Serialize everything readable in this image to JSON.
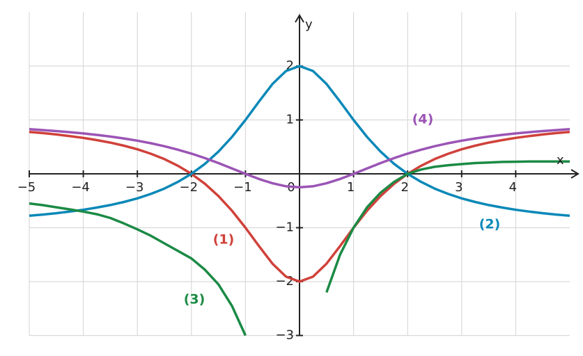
{
  "chart_data": {
    "type": "line",
    "x_label": "x",
    "y_label": "y",
    "x": [
      -5,
      -4.75,
      -4.5,
      -4.25,
      -4,
      -3.75,
      -3.5,
      -3.25,
      -3,
      -2.75,
      -2.5,
      -2.25,
      -2,
      -1.75,
      -1.5,
      -1.25,
      -1,
      -0.75,
      -0.5,
      -0.25,
      0,
      0.25,
      0.5,
      0.75,
      1,
      1.25,
      1.5,
      1.75,
      2,
      2.25,
      2.5,
      2.75,
      3,
      3.25,
      3.5,
      3.75,
      4,
      4.25,
      4.5,
      4.75,
      5
    ],
    "series": [
      {
        "name": "(1)",
        "color": "#d0413a",
        "values": [
          0.778,
          0.756,
          0.73,
          0.701,
          0.667,
          0.626,
          0.579,
          0.522,
          0.455,
          0.373,
          0.273,
          0.15,
          0,
          -0.185,
          -0.412,
          -0.684,
          -1,
          -1.341,
          -1.667,
          -1.909,
          -2,
          -1.909,
          -1.667,
          -1.341,
          -1,
          -0.684,
          -0.412,
          -0.185,
          0,
          0.15,
          0.273,
          0.373,
          0.455,
          0.522,
          0.579,
          0.626,
          0.667,
          0.701,
          0.73,
          0.756,
          0.778
        ]
      },
      {
        "name": "(2)",
        "color": "#0a88b8",
        "values": [
          -0.778,
          -0.756,
          -0.73,
          -0.701,
          -0.667,
          -0.626,
          -0.579,
          -0.522,
          -0.455,
          -0.373,
          -0.273,
          -0.15,
          0,
          0.185,
          0.412,
          0.684,
          1,
          1.341,
          1.667,
          1.909,
          2,
          1.909,
          1.667,
          1.341,
          1,
          0.684,
          0.412,
          0.185,
          0,
          -0.15,
          -0.273,
          -0.373,
          -0.455,
          -0.522,
          -0.579,
          -0.626,
          -0.667,
          -0.701,
          -0.73,
          -0.756,
          -0.778
        ]
      },
      {
        "name": "(3)",
        "color": "#1b8a45",
        "values": [
          -0.55,
          -0.58,
          -0.62,
          -0.66,
          -0.7,
          -0.75,
          -0.82,
          -0.92,
          -1.03,
          -1.15,
          -1.29,
          -1.43,
          -1.57,
          -1.78,
          -2.05,
          -2.45,
          -3.0,
          null,
          null,
          null,
          null,
          null,
          -2.2,
          -1.5,
          -1.0,
          -0.62,
          -0.35,
          -0.15,
          0,
          0.08,
          0.13,
          0.16,
          0.18,
          0.2,
          0.21,
          0.22,
          0.225,
          0.23,
          0.23,
          0.23,
          0.23
        ]
      },
      {
        "name": "(4)",
        "color": "#9b54b5",
        "values": [
          0.828,
          0.812,
          0.794,
          0.773,
          0.75,
          0.723,
          0.692,
          0.657,
          0.615,
          0.568,
          0.512,
          0.448,
          0.375,
          0.292,
          0.2,
          0.101,
          0,
          -0.096,
          -0.176,
          -0.231,
          -0.25,
          -0.231,
          -0.176,
          -0.096,
          0,
          0.101,
          0.2,
          0.292,
          0.375,
          0.448,
          0.512,
          0.568,
          0.615,
          0.657,
          0.692,
          0.723,
          0.75,
          0.773,
          0.794,
          0.812,
          0.828
        ]
      }
    ],
    "xlim": [
      -5,
      5
    ],
    "ylim": [
      -3,
      3
    ],
    "xticks": [
      {
        "value": -5,
        "label": "−5"
      },
      {
        "value": -4,
        "label": "−4"
      },
      {
        "value": -3,
        "label": "−3"
      },
      {
        "value": -2,
        "label": "−2"
      },
      {
        "value": -1,
        "label": "−1"
      },
      0,
      1,
      2,
      3,
      4
    ],
    "yticks": [
      {
        "value": -3,
        "label": "−3"
      },
      {
        "value": -2,
        "label": "−2"
      },
      {
        "value": -1,
        "label": "−1"
      },
      1,
      2
    ],
    "grid": true
  }
}
